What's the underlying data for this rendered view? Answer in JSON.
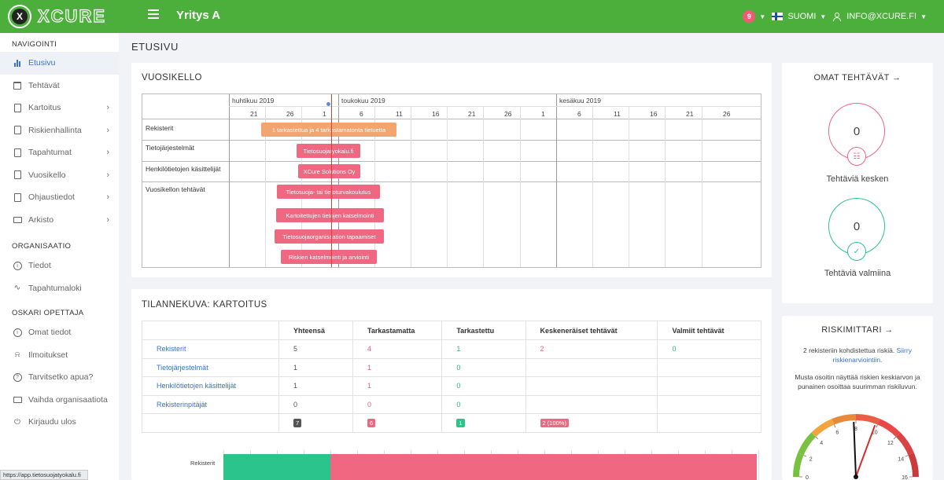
{
  "topbar": {
    "logo_mark": "X",
    "logo_text": "XCURE",
    "company": "Yritys A",
    "notifications": "9",
    "language": "SUOMI",
    "user": "INFO@XCURE.FI"
  },
  "sidebar": {
    "section_nav": "NAVIGOINTI",
    "nav_items": [
      {
        "label": "Etusivu",
        "icon": "bar-chart-icon",
        "active": true
      },
      {
        "label": "Tehtävät",
        "icon": "calendar-check-icon"
      },
      {
        "label": "Kartoitus",
        "icon": "document-icon",
        "expandable": true
      },
      {
        "label": "Riskienhallinta",
        "icon": "document-icon",
        "expandable": true
      },
      {
        "label": "Tapahtumat",
        "icon": "document-icon",
        "expandable": true
      },
      {
        "label": "Vuosikello",
        "icon": "document-icon",
        "expandable": true
      },
      {
        "label": "Ohjaustiedot",
        "icon": "document-icon",
        "expandable": true
      },
      {
        "label": "Arkisto",
        "icon": "folder-icon",
        "expandable": true
      }
    ],
    "section_org": "ORGANISAATIO",
    "org_items": [
      {
        "label": "Tiedot",
        "icon": "info-icon"
      },
      {
        "label": "Tapahtumaloki",
        "icon": "activity-icon"
      }
    ],
    "section_user": "OSKARI OPETTAJA",
    "user_items": [
      {
        "label": "Omat tiedot",
        "icon": "info-icon"
      },
      {
        "label": "Ilmoitukset",
        "icon": "bell-icon"
      },
      {
        "label": "Tarvitsetko apua?",
        "icon": "help-icon"
      },
      {
        "label": "Vaihda organisaatiota",
        "icon": "monitor-icon"
      },
      {
        "label": "Kirjaudu ulos",
        "icon": "power-icon"
      }
    ],
    "status_url": "https://app.tietosuojatyokalu.fi"
  },
  "page_title": "ETUSIVU",
  "vuosikello": {
    "title": "VUOSIKELLO",
    "months": [
      {
        "label": "huhtikuu 2019",
        "col": 0
      },
      {
        "label": "toukokuu 2019",
        "col": 3
      },
      {
        "label": "kesäkuu 2019",
        "col": 9
      }
    ],
    "days": [
      "21",
      "26",
      "1",
      "6",
      "11",
      "16",
      "21",
      "26",
      "1",
      "6",
      "11",
      "16",
      "21",
      "26"
    ],
    "rows": [
      {
        "label": "Rekisterit"
      },
      {
        "label": "Tietojärjestelmät"
      },
      {
        "label": "Henkilötietojen käsittelijät"
      },
      {
        "label": "Vuosikellon tehtävät"
      }
    ],
    "bars": [
      {
        "label": "1 tarkastettua ja 4 tarkastamatonta tietuetta",
        "color": "orange"
      },
      {
        "label": "Tietosuojatyokalu.fi",
        "color": "pink"
      },
      {
        "label": "XCure Solutions Oy",
        "color": "pink"
      },
      {
        "label": "Tietosuoja- tai tietoturvakoulutus",
        "color": "pink"
      },
      {
        "label": "Kartoitettujen tietojen katselmointi",
        "color": "pink"
      },
      {
        "label": "Tietosuojaorganisaation tapaamiset",
        "color": "pink"
      },
      {
        "label": "Riskien katselmointi ja arviointi",
        "color": "pink"
      }
    ]
  },
  "tilannekuva": {
    "title": "TILANNEKUVA: KARTOITUS",
    "headers": [
      "",
      "Yhteensä",
      "Tarkastamatta",
      "Tarkastettu",
      "Keskeneräiset tehtävät",
      "Valmiit tehtävät"
    ],
    "rows": [
      {
        "name": "Rekisterit",
        "total": "5",
        "unchecked": "4",
        "checked": "1",
        "open": "2",
        "done": "0"
      },
      {
        "name": "Tietojärjestelmät",
        "total": "1",
        "unchecked": "1",
        "checked": "0",
        "open": "",
        "done": ""
      },
      {
        "name": "Henkilötietojen käsittelijät",
        "total": "1",
        "unchecked": "1",
        "checked": "0",
        "open": "",
        "done": ""
      },
      {
        "name": "Rekisterinpitäjät",
        "total": "0",
        "unchecked": "0",
        "checked": "0",
        "open": "",
        "done": ""
      }
    ],
    "totals": {
      "total": "7",
      "unchecked": "6",
      "checked": "1",
      "open": "2 (100%)"
    }
  },
  "bar_chart": {
    "label": "Rekisterit",
    "checked_fraction": 0.2,
    "unchecked_fraction": 0.8,
    "colors": {
      "checked": "#2bc48d",
      "unchecked": "#ef6781"
    }
  },
  "omat_tehtavat": {
    "title": "OMAT TEHTÄVÄT →",
    "in_progress_count": "0",
    "in_progress_label": "Tehtäviä kesken",
    "done_count": "0",
    "done_label": "Tehtäviä valmiina"
  },
  "riskimittari": {
    "title": "RISKIMITTARI →",
    "text1": "2 rekisteriin kohdistettua riskiä.",
    "link": "Siirry riskienarviointiin.",
    "text2": "Musta osoitin näyttää riskien keskiarvon ja punainen osoittaa suurimman riskiluvun.",
    "gauge_ticks": [
      "0",
      "2",
      "4",
      "6",
      "8",
      "10",
      "12",
      "14",
      "16"
    ],
    "gauge_max": 16,
    "average": 7.8,
    "max": 9.8
  }
}
